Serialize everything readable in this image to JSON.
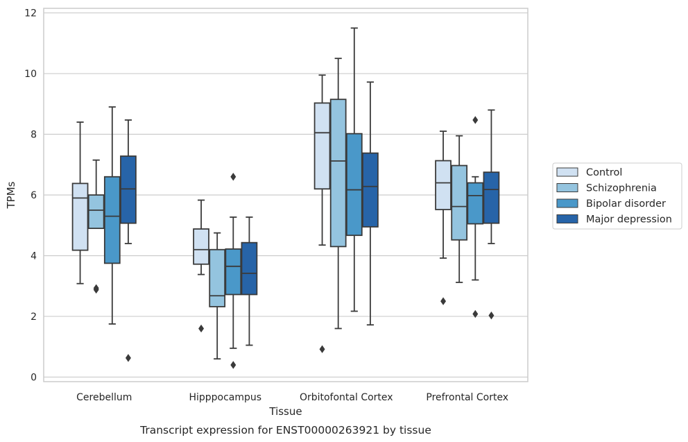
{
  "chart_data": {
    "type": "boxplot",
    "xlabel": "Tissue",
    "ylabel": "TPMs",
    "caption": "Transcript expression for ENST00000263921 by tissue",
    "ylim": [
      -0.15,
      12.15
    ],
    "yticks": [
      0,
      2,
      4,
      6,
      8,
      10,
      12
    ],
    "grid": true,
    "legend_position": "right",
    "categories": [
      "Cerebellum",
      "Hipppocampus",
      "Orbitofontal Cortex",
      "Prefrontal Cortex"
    ],
    "series": [
      {
        "name": "Control",
        "color": "#d0e1f2",
        "boxes": [
          {
            "whisker_low": 3.08,
            "q1": 4.18,
            "median": 5.9,
            "q3": 6.38,
            "whisker_high": 8.4,
            "outliers": []
          },
          {
            "whisker_low": 3.38,
            "q1": 3.72,
            "median": 4.2,
            "q3": 4.88,
            "whisker_high": 5.83,
            "outliers": [
              1.6
            ]
          },
          {
            "whisker_low": 4.35,
            "q1": 6.2,
            "median": 8.05,
            "q3": 9.03,
            "whisker_high": 9.95,
            "outliers": [
              0.92
            ]
          },
          {
            "whisker_low": 3.92,
            "q1": 5.52,
            "median": 6.4,
            "q3": 7.13,
            "whisker_high": 8.1,
            "outliers": [
              2.5
            ]
          }
        ]
      },
      {
        "name": "Schizophrenia",
        "color": "#94c4df",
        "boxes": [
          {
            "whisker_low": 4.9,
            "q1": 4.9,
            "median": 5.5,
            "q3": 6.0,
            "whisker_high": 7.15,
            "outliers": [
              2.88,
              2.93
            ]
          },
          {
            "whisker_low": 0.6,
            "q1": 2.32,
            "median": 2.68,
            "q3": 4.2,
            "whisker_high": 4.75,
            "outliers": []
          },
          {
            "whisker_low": 1.6,
            "q1": 4.3,
            "median": 7.12,
            "q3": 9.15,
            "whisker_high": 10.5,
            "outliers": []
          },
          {
            "whisker_low": 3.12,
            "q1": 4.52,
            "median": 5.62,
            "q3": 6.97,
            "whisker_high": 7.95,
            "outliers": []
          }
        ]
      },
      {
        "name": "Bipolar disorder",
        "color": "#4a98c9",
        "boxes": [
          {
            "whisker_low": 1.75,
            "q1": 3.75,
            "median": 5.3,
            "q3": 6.6,
            "whisker_high": 8.9,
            "outliers": []
          },
          {
            "whisker_low": 0.95,
            "q1": 2.72,
            "median": 3.65,
            "q3": 4.22,
            "whisker_high": 5.27,
            "outliers": [
              6.6,
              0.4
            ]
          },
          {
            "whisker_low": 2.17,
            "q1": 4.67,
            "median": 6.17,
            "q3": 8.02,
            "whisker_high": 11.5,
            "outliers": []
          },
          {
            "whisker_low": 3.2,
            "q1": 5.05,
            "median": 5.98,
            "q3": 6.4,
            "whisker_high": 6.6,
            "outliers": [
              8.47,
              2.08
            ]
          }
        ]
      },
      {
        "name": "Major depression",
        "color": "#2764a8",
        "boxes": [
          {
            "whisker_low": 4.4,
            "q1": 5.07,
            "median": 6.2,
            "q3": 7.28,
            "whisker_high": 8.47,
            "outliers": [
              0.63
            ]
          },
          {
            "whisker_low": 1.05,
            "q1": 2.72,
            "median": 3.42,
            "q3": 4.43,
            "whisker_high": 5.27,
            "outliers": []
          },
          {
            "whisker_low": 1.72,
            "q1": 4.95,
            "median": 6.28,
            "q3": 7.38,
            "whisker_high": 9.72,
            "outliers": []
          },
          {
            "whisker_low": 4.4,
            "q1": 5.07,
            "median": 6.18,
            "q3": 6.75,
            "whisker_high": 8.8,
            "outliers": [
              2.03
            ]
          }
        ]
      }
    ]
  }
}
